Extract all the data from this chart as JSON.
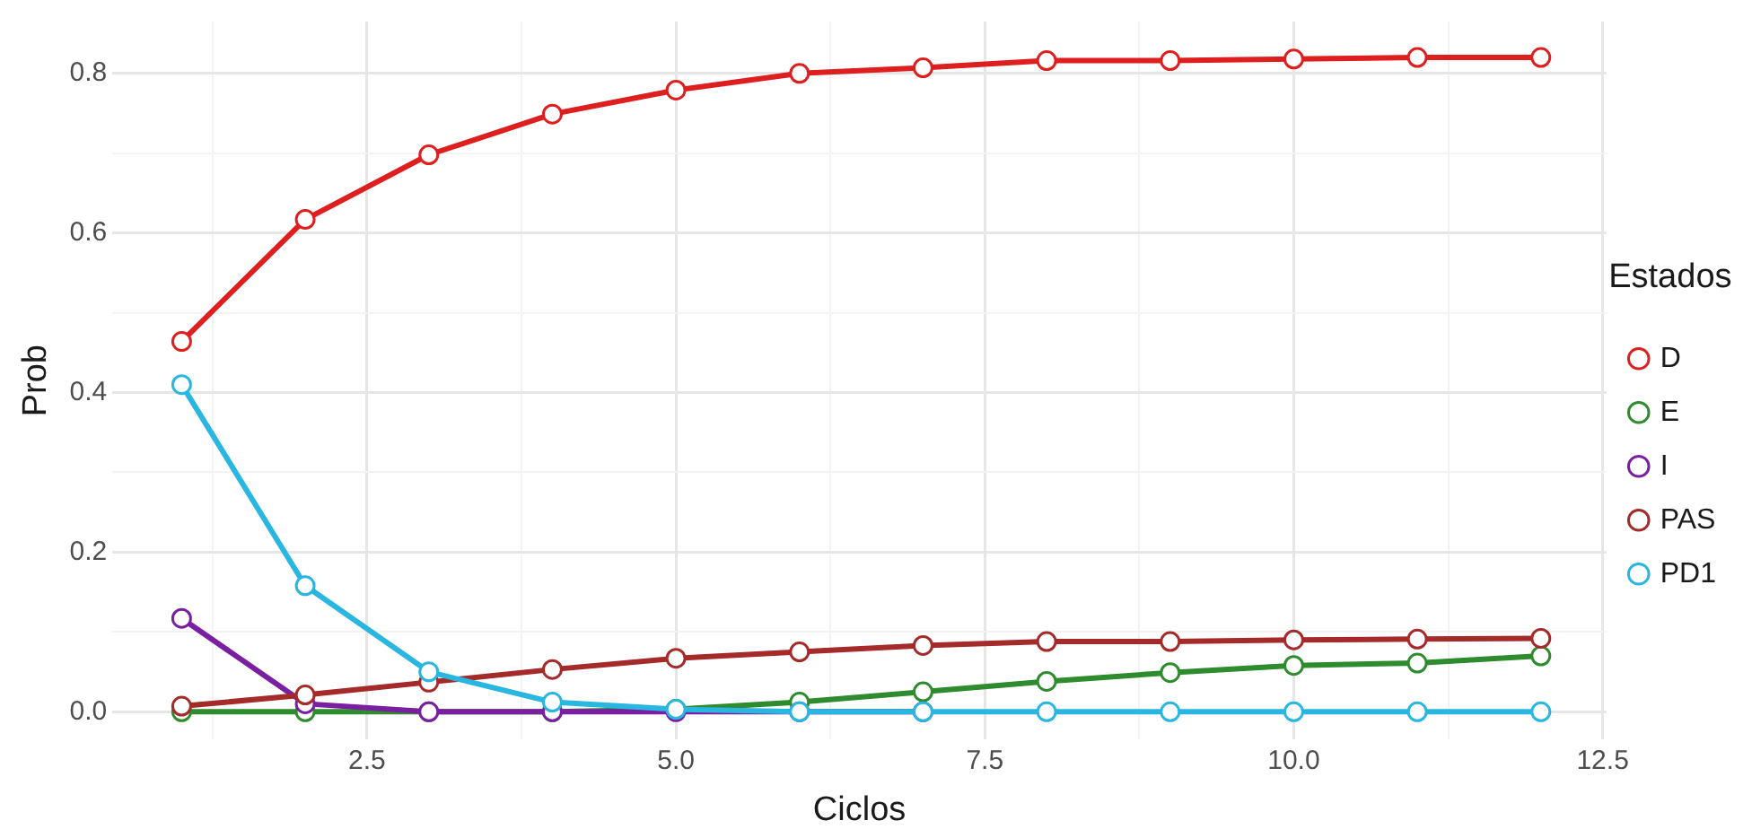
{
  "chart_data": {
    "type": "line",
    "xlabel": "Ciclos",
    "ylabel": "Prob",
    "legend_title": "Estados",
    "legend": "right",
    "grid": true,
    "marker": "circle",
    "line_style": "solid",
    "x": [
      1,
      2,
      3,
      4,
      5,
      6,
      7,
      8,
      9,
      10,
      11,
      12
    ],
    "xlim": [
      0.44,
      12.53
    ],
    "xticks": [
      {
        "value": 1.25,
        "label": null
      },
      2.5,
      {
        "value": 3.75,
        "label": null
      },
      {
        "value": 5,
        "label": "5.0"
      },
      {
        "value": 6.25,
        "label": null
      },
      7.5,
      {
        "value": 8.75,
        "label": null
      },
      {
        "value": 10,
        "label": "10.0"
      },
      {
        "value": 11.25,
        "label": null
      },
      12.5
    ],
    "ylim": [
      -0.035,
      0.865
    ],
    "yticks": [
      {
        "value": 0,
        "label": "0.0"
      },
      {
        "value": 0.1,
        "label": null
      },
      {
        "value": 0.2,
        "label": "0.2"
      },
      {
        "value": 0.3,
        "label": null
      },
      {
        "value": 0.4,
        "label": "0.4"
      },
      {
        "value": 0.5,
        "label": null
      },
      {
        "value": 0.6,
        "label": "0.6"
      },
      {
        "value": 0.7,
        "label": null
      },
      {
        "value": 0.8,
        "label": "0.8"
      }
    ],
    "series": [
      {
        "name": "D",
        "color": "#dd1f1f",
        "values": [
          0.464,
          0.617,
          0.698,
          0.749,
          0.779,
          0.8,
          0.807,
          0.816,
          0.816,
          0.818,
          0.82,
          0.82
        ]
      },
      {
        "name": "E",
        "color": "#2e8b2e",
        "values": [
          0,
          0,
          0,
          0,
          0.003,
          0.012,
          0.025,
          0.038,
          0.049,
          0.058,
          0.061,
          0.07
        ]
      },
      {
        "name": "I",
        "color": "#7b1fa2",
        "values": [
          0.117,
          0.01,
          0,
          0,
          0,
          0,
          0,
          null,
          null,
          null,
          null,
          null
        ]
      },
      {
        "name": "PAS",
        "color": "#a52a2a",
        "values": [
          0.007,
          0.021,
          0.037,
          0.053,
          0.067,
          0.075,
          0.083,
          0.088,
          0.088,
          0.09,
          0.091,
          0.092
        ]
      },
      {
        "name": "PD1",
        "color": "#29b6e0",
        "values": [
          0.41,
          0.158,
          0.05,
          0.012,
          0.003,
          0,
          0,
          0,
          0,
          0,
          0,
          0
        ]
      }
    ]
  }
}
